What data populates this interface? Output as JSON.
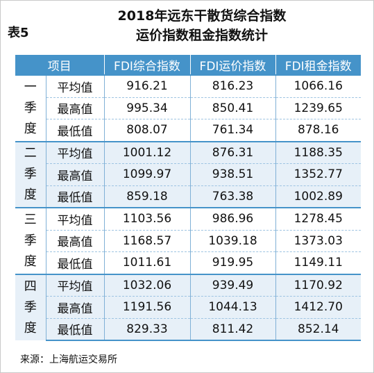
{
  "table_no": "表5",
  "title_line1": "2018年远东干散货综合指数",
  "title_line2": "运价指数租金指数统计",
  "headers": [
    "项目",
    "FDI综合指数",
    "FDI运价指数",
    "FDI租金指数"
  ],
  "quarters": [
    {
      "label_chars": [
        "一",
        "季",
        "度"
      ],
      "rows": [
        {
          "item": "平均值",
          "composite": "916.21",
          "freight": "816.23",
          "rent": "1066.16"
        },
        {
          "item": "最高值",
          "composite": "995.34",
          "freight": "850.41",
          "rent": "1239.65"
        },
        {
          "item": "最低值",
          "composite": "808.07",
          "freight": "761.34",
          "rent": "878.16"
        }
      ]
    },
    {
      "label_chars": [
        "二",
        "季",
        "度"
      ],
      "rows": [
        {
          "item": "平均值",
          "composite": "1001.12",
          "freight": "876.31",
          "rent": "1188.35"
        },
        {
          "item": "最高值",
          "composite": "1099.97",
          "freight": "938.51",
          "rent": "1352.77"
        },
        {
          "item": "最低值",
          "composite": "859.18",
          "freight": "763.38",
          "rent": "1002.89"
        }
      ]
    },
    {
      "label_chars": [
        "三",
        "季",
        "度"
      ],
      "rows": [
        {
          "item": "平均值",
          "composite": "1103.56",
          "freight": "986.96",
          "rent": "1278.45"
        },
        {
          "item": "最高值",
          "composite": "1168.57",
          "freight": "1039.18",
          "rent": "1373.03"
        },
        {
          "item": "最低值",
          "composite": "1011.61",
          "freight": "919.95",
          "rent": "1149.11"
        }
      ]
    },
    {
      "label_chars": [
        "四",
        "季",
        "度"
      ],
      "rows": [
        {
          "item": "平均值",
          "composite": "1032.06",
          "freight": "939.49",
          "rent": "1170.92"
        },
        {
          "item": "最高值",
          "composite": "1191.56",
          "freight": "1044.13",
          "rent": "1412.70"
        },
        {
          "item": "最低值",
          "composite": "829.33",
          "freight": "811.42",
          "rent": "852.14"
        }
      ]
    }
  ],
  "source": "来源：上海航运交易所",
  "colors": {
    "header_bg": "#4593c9",
    "band_bg": "#e7f0f8",
    "rule": "#7fb0d6"
  }
}
